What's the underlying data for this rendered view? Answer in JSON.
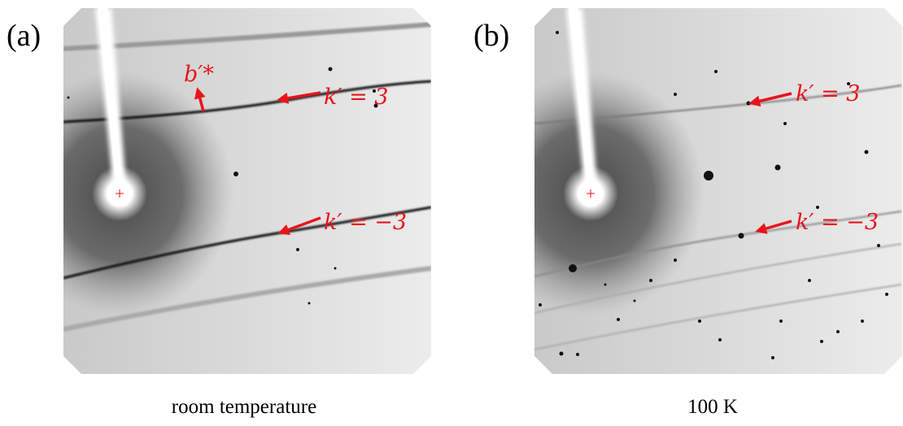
{
  "panels": [
    {
      "label": "(a)",
      "caption": "room temperature",
      "annotations": [
        "b′*",
        "k′ = 3",
        "k′ = −3"
      ]
    },
    {
      "label": "(b)",
      "caption": "100 K",
      "annotations": [
        "k′ = 3",
        "k′ = −3"
      ]
    }
  ]
}
